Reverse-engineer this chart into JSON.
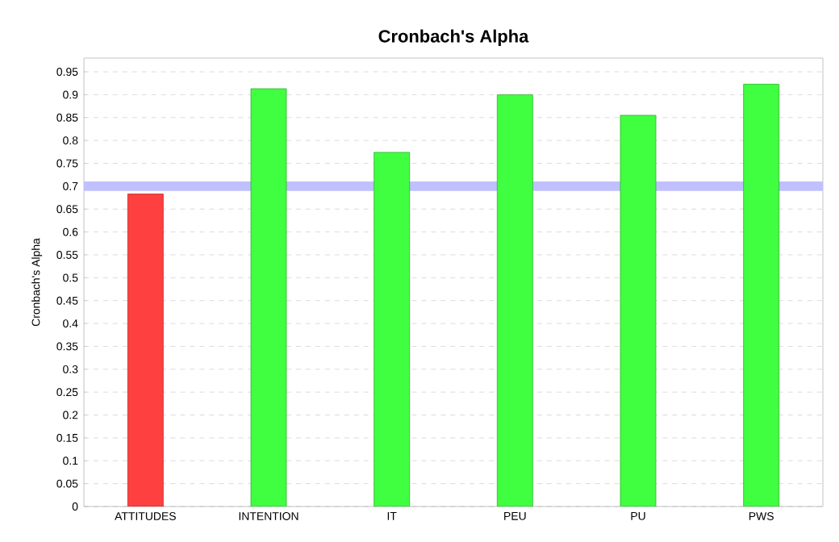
{
  "chart_data": {
    "type": "bar",
    "title": "Cronbach's Alpha",
    "ylabel": "Cronbach's Alpha",
    "categories": [
      "ATTITUDES",
      "INTENTION",
      "IT",
      "PEU",
      "PU",
      "PWS"
    ],
    "values": [
      0.683,
      0.913,
      0.774,
      0.9,
      0.855,
      0.923
    ],
    "colors": [
      "#ff4040",
      "#40ff40",
      "#40ff40",
      "#40ff40",
      "#40ff40",
      "#40ff40"
    ],
    "ylim": [
      0,
      0.98
    ],
    "yticks": [
      0,
      0.05,
      0.1,
      0.15,
      0.2,
      0.25,
      0.3,
      0.35,
      0.4,
      0.45,
      0.5,
      0.55,
      0.6,
      0.65,
      0.7,
      0.75,
      0.8,
      0.85,
      0.9,
      0.95
    ],
    "ref_lines": [
      {
        "axis": "y",
        "value": 0.7,
        "color": "#c0c0ff"
      }
    ],
    "grid": "y"
  }
}
